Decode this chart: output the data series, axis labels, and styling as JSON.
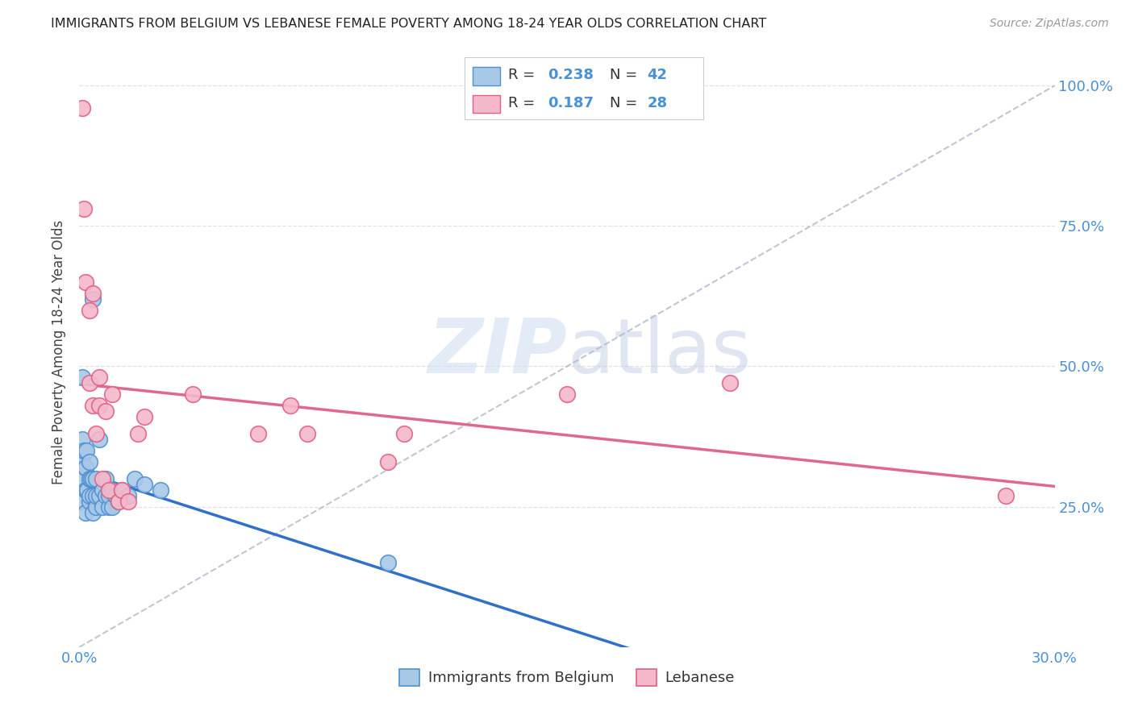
{
  "title": "IMMIGRANTS FROM BELGIUM VS LEBANESE FEMALE POVERTY AMONG 18-24 YEAR OLDS CORRELATION CHART",
  "source": "Source: ZipAtlas.com",
  "ylabel": "Female Poverty Among 18-24 Year Olds",
  "xlim": [
    0.0,
    0.3
  ],
  "ylim": [
    0.0,
    1.05
  ],
  "ytick_vals": [
    0.25,
    0.5,
    0.75,
    1.0
  ],
  "ytick_labels": [
    "25.0%",
    "50.0%",
    "75.0%",
    "100.0%"
  ],
  "xticks": [
    0.0,
    0.05,
    0.1,
    0.15,
    0.2,
    0.25,
    0.3
  ],
  "xtick_labels": [
    "0.0%",
    "",
    "",
    "",
    "",
    "",
    "30.0%"
  ],
  "belgium_color": "#a8c8e8",
  "lebanese_color": "#f5b8cb",
  "belgium_edge_color": "#5090d0",
  "lebanese_edge_color": "#e06080",
  "trendline_belgium_color": "#3070c8",
  "trendline_lebanese_color": "#e06890",
  "trendline_dashed_color": "#b0b8cc",
  "R_belgium": 0.238,
  "N_belgium": 42,
  "R_lebanese": 0.187,
  "N_lebanese": 28,
  "belgium_x": [
    0.0005,
    0.0008,
    0.001,
    0.001,
    0.0012,
    0.0015,
    0.0018,
    0.002,
    0.002,
    0.002,
    0.0022,
    0.0025,
    0.003,
    0.003,
    0.003,
    0.0032,
    0.0035,
    0.004,
    0.004,
    0.004,
    0.0042,
    0.005,
    0.005,
    0.005,
    0.006,
    0.006,
    0.007,
    0.007,
    0.008,
    0.008,
    0.009,
    0.009,
    0.01,
    0.01,
    0.011,
    0.012,
    0.013,
    0.015,
    0.017,
    0.02,
    0.025,
    0.095
  ],
  "belgium_y": [
    0.26,
    0.33,
    0.37,
    0.48,
    0.3,
    0.35,
    0.32,
    0.24,
    0.28,
    0.32,
    0.35,
    0.28,
    0.26,
    0.3,
    0.33,
    0.27,
    0.3,
    0.24,
    0.27,
    0.3,
    0.62,
    0.25,
    0.27,
    0.3,
    0.27,
    0.37,
    0.25,
    0.28,
    0.27,
    0.3,
    0.25,
    0.27,
    0.25,
    0.28,
    0.27,
    0.26,
    0.28,
    0.27,
    0.3,
    0.29,
    0.28,
    0.15
  ],
  "lebanese_x": [
    0.001,
    0.0015,
    0.002,
    0.003,
    0.003,
    0.004,
    0.004,
    0.005,
    0.006,
    0.006,
    0.007,
    0.008,
    0.009,
    0.01,
    0.012,
    0.013,
    0.015,
    0.018,
    0.02,
    0.035,
    0.055,
    0.065,
    0.07,
    0.095,
    0.1,
    0.15,
    0.2,
    0.285
  ],
  "lebanese_y": [
    0.96,
    0.78,
    0.65,
    0.6,
    0.47,
    0.43,
    0.63,
    0.38,
    0.43,
    0.48,
    0.3,
    0.42,
    0.28,
    0.45,
    0.26,
    0.28,
    0.26,
    0.38,
    0.41,
    0.45,
    0.38,
    0.43,
    0.38,
    0.33,
    0.38,
    0.45,
    0.47,
    0.27
  ],
  "watermark_zip": "ZIP",
  "watermark_atlas": "atlas",
  "background_color": "#ffffff",
  "grid_color": "#e0e0e8",
  "legend_label_belgium": "Immigrants from Belgium",
  "legend_label_lebanese": "Lebanese",
  "tick_color": "#4a90d9",
  "axis_label_color": "#444444"
}
